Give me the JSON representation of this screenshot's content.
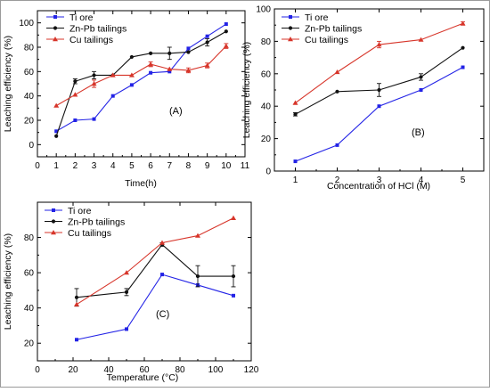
{
  "colors": {
    "ti": "#2323e6",
    "znpb": "#111111",
    "cu": "#d7352a",
    "axis": "#000000",
    "frame": "#9a9a9a"
  },
  "chart_data": [
    {
      "type": "line",
      "panel_label": "(A)",
      "xlabel": "Time(h)",
      "ylabel": "Leaching efficiency (%)",
      "xlim": [
        0,
        11
      ],
      "ylim": [
        -10,
        110
      ],
      "xticks": [
        0,
        1,
        2,
        3,
        4,
        5,
        6,
        7,
        8,
        9,
        10,
        11
      ],
      "yticks": [
        0,
        20,
        40,
        60,
        80,
        100
      ],
      "legend_position": "top-left",
      "series": [
        {
          "name": "Ti ore",
          "color_key": "ti",
          "marker": "square",
          "x": [
            1,
            2,
            3,
            4,
            5,
            6,
            7,
            8,
            9,
            10
          ],
          "y": [
            11,
            20,
            21,
            40,
            49,
            59,
            60,
            79,
            89,
            99
          ],
          "err": [
            0,
            0,
            0,
            0,
            0,
            0,
            0,
            0,
            0,
            0
          ]
        },
        {
          "name": "Zn-Pb tailings",
          "color_key": "znpb",
          "marker": "dot",
          "x": [
            1,
            2,
            3,
            4,
            5,
            6,
            7,
            8,
            9,
            10
          ],
          "y": [
            7,
            52,
            57,
            57,
            72,
            75,
            75,
            76,
            84,
            93
          ],
          "err": [
            0,
            2,
            3,
            0,
            0,
            0,
            5,
            0,
            3,
            0
          ]
        },
        {
          "name": "Cu tailings",
          "color_key": "cu",
          "marker": "triangle",
          "x": [
            1,
            2,
            3,
            4,
            5,
            6,
            7,
            8,
            9,
            10
          ],
          "y": [
            32,
            41,
            50,
            57,
            57,
            66,
            62,
            61,
            65,
            81
          ],
          "err": [
            0,
            0,
            3,
            0,
            0,
            2,
            0,
            2,
            2,
            2
          ]
        }
      ]
    },
    {
      "type": "line",
      "panel_label": "(B)",
      "xlabel": "Concentration of HCl (M)",
      "ylabel": "Leaching efficiency (%)",
      "xlim": [
        0.5,
        5.5
      ],
      "ylim": [
        0,
        100
      ],
      "xticks": [
        1,
        2,
        3,
        4,
        5
      ],
      "yticks": [
        0,
        20,
        40,
        60,
        80,
        100
      ],
      "legend_position": "top-left",
      "series": [
        {
          "name": "Ti ore",
          "color_key": "ti",
          "marker": "square",
          "x": [
            1,
            2,
            3,
            4,
            5
          ],
          "y": [
            6,
            16,
            40,
            50,
            64
          ],
          "err": [
            0,
            0,
            0,
            0,
            0
          ]
        },
        {
          "name": "Zn-Pb tailings",
          "color_key": "znpb",
          "marker": "dot",
          "x": [
            1,
            2,
            3,
            4,
            5
          ],
          "y": [
            35,
            49,
            50,
            58,
            76
          ],
          "err": [
            1,
            0,
            4,
            2,
            0
          ]
        },
        {
          "name": "Cu tailings",
          "color_key": "cu",
          "marker": "triangle",
          "x": [
            1,
            2,
            3,
            4,
            5
          ],
          "y": [
            42,
            61,
            78,
            81,
            91
          ],
          "err": [
            0,
            0,
            2,
            0,
            1
          ]
        }
      ]
    },
    {
      "type": "line",
      "panel_label": "(C)",
      "xlabel": "Temperature (°C)",
      "ylabel": "Leaching efficiency (%)",
      "xlim": [
        0,
        120
      ],
      "ylim": [
        10,
        100
      ],
      "xticks": [
        0,
        20,
        40,
        60,
        80,
        100,
        120
      ],
      "yticks": [
        20,
        40,
        60,
        80
      ],
      "legend_position": "top-left",
      "series": [
        {
          "name": "Ti ore",
          "color_key": "ti",
          "marker": "square",
          "x": [
            22,
            50,
            70,
            90,
            110
          ],
          "y": [
            22,
            28,
            59,
            53,
            47
          ],
          "err": [
            0,
            0,
            0,
            0,
            0
          ]
        },
        {
          "name": "Zn-Pb tailings",
          "color_key": "znpb",
          "marker": "dot",
          "x": [
            22,
            50,
            70,
            90,
            110
          ],
          "y": [
            46,
            49,
            76,
            58,
            58
          ],
          "err": [
            5,
            2,
            1,
            6,
            6
          ]
        },
        {
          "name": "Cu tailings",
          "color_key": "cu",
          "marker": "triangle",
          "x": [
            22,
            50,
            70,
            90,
            110
          ],
          "y": [
            42,
            60,
            77,
            81,
            91
          ],
          "err": [
            0,
            0,
            0,
            0,
            0
          ]
        }
      ]
    }
  ]
}
